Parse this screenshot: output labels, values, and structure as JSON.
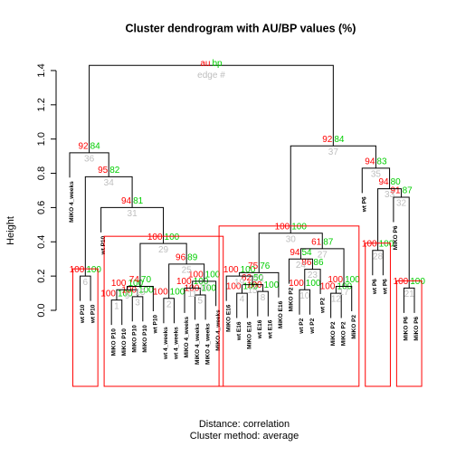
{
  "chart_data": {
    "type": "dendrogram",
    "title": "Cluster dendrogram with AU/BP values (%)",
    "y_label": "Height",
    "x_label": [
      "Distance:  correlation",
      "Cluster method: average"
    ],
    "legend": {
      "au": "au",
      "bp": "bp",
      "edge": "edge #"
    },
    "colors": {
      "au": "#ff0000",
      "bp": "#00cd00",
      "edge": "#bebebe",
      "line": "#000000",
      "box": "#ff0000"
    },
    "ylim": [
      0,
      1.45
    ],
    "yticks": [
      {
        "value": 0,
        "label": "0.0"
      },
      {
        "value": 0.2,
        "label": "0.2"
      },
      {
        "value": 0.4,
        "label": "0.4"
      },
      {
        "value": 0.6,
        "label": "0.6"
      },
      {
        "value": 0.8,
        "label": "0.8"
      },
      {
        "value": 1,
        "label": "1.0"
      },
      {
        "value": 1.2,
        "label": "1.2"
      },
      {
        "value": 1.4,
        "label": "1.4"
      }
    ],
    "leaves": [
      "MiKO 4_weeks",
      "wt P10",
      "wt P10",
      "wt P10",
      "MiKO P10",
      "MiKO P10",
      "MiKO P10",
      "MiKO P10",
      "wt P10",
      "wt 4_weeks",
      "wt 4_weeks",
      "MiKO 4_weeks",
      "MiKO 4_weeks",
      "MiKO 4_weeks",
      "MiKO 4_weeks",
      "MiKO E16",
      "wt E16",
      "MiKO E16",
      "wt E16",
      "wt E16",
      "MiKO E16",
      "MiKO P2",
      "wt P2",
      "wt P2",
      "wt P2",
      "MiKO P2",
      "MiKO P2",
      "MiKO P2",
      "wt P6",
      "wt P6",
      "wt P6",
      "MiKO P6",
      "MiKO P6",
      "MiKO P6"
    ],
    "merges": [
      {
        "children": [
          -2,
          -3
        ],
        "height": 0.2,
        "au": 100,
        "bp": 100,
        "edge": 6
      },
      {
        "children": [
          -5,
          -6
        ],
        "height": 0.06,
        "au": 100,
        "bp": 100,
        "edge": 1
      },
      {
        "children": [
          -7,
          -8
        ],
        "height": 0.08,
        "au": 100,
        "bp": 100,
        "edge": 3
      },
      {
        "children": [
          2,
          3
        ],
        "height": 0.12,
        "au": 100,
        "bp": 100,
        "edge": 9
      },
      {
        "children": [
          4,
          -9
        ],
        "height": 0.14,
        "au": 74,
        "bp": 70,
        "edge": 13
      },
      {
        "children": [
          -10,
          -11
        ],
        "height": 0.07,
        "au": 100,
        "bp": 100,
        "edge": 2
      },
      {
        "children": [
          -13,
          -14
        ],
        "height": 0.09,
        "au": 100,
        "bp": 100,
        "edge": 5
      },
      {
        "children": [
          -12,
          7
        ],
        "height": 0.13,
        "au": 100,
        "bp": 100,
        "edge": 11
      },
      {
        "children": [
          8,
          -15
        ],
        "height": 0.17,
        "au": 100,
        "bp": 100,
        "edge": 18
      },
      {
        "children": [
          6,
          9
        ],
        "height": 0.27,
        "au": 96,
        "bp": 89,
        "edge": 25
      },
      {
        "children": [
          5,
          10
        ],
        "height": 0.39,
        "au": 100,
        "bp": 100,
        "edge": 29
      },
      {
        "children": [
          -4,
          11
        ],
        "height": 0.6,
        "au": 94,
        "bp": 81,
        "edge": 31
      },
      {
        "children": [
          1,
          12
        ],
        "height": 0.78,
        "au": 95,
        "bp": 82,
        "edge": 34
      },
      {
        "children": [
          -1,
          13
        ],
        "height": 0.92,
        "au": 92,
        "bp": 84,
        "edge": 36
      },
      {
        "children": [
          -17,
          -18
        ],
        "height": 0.1,
        "au": 100,
        "bp": 100,
        "edge": 4
      },
      {
        "children": [
          -19,
          -20
        ],
        "height": 0.11,
        "au": 100,
        "bp": 100,
        "edge": 8
      },
      {
        "children": [
          15,
          16
        ],
        "height": 0.15,
        "au": 62,
        "bp": 50,
        "edge": 15
      },
      {
        "children": [
          -16,
          17
        ],
        "height": 0.2,
        "au": 100,
        "bp": 100,
        "edge": 19
      },
      {
        "children": [
          18,
          -21
        ],
        "height": 0.22,
        "au": 75,
        "bp": 76,
        "edge": 22
      },
      {
        "children": [
          -23,
          -24
        ],
        "height": 0.12,
        "au": 100,
        "bp": 100,
        "edge": 10
      },
      {
        "children": [
          -26,
          -27
        ],
        "height": 0.1,
        "au": 100,
        "bp": 100,
        "edge": 12
      },
      {
        "children": [
          21,
          -28
        ],
        "height": 0.14,
        "au": 100,
        "bp": 100,
        "edge": 17
      },
      {
        "children": [
          20,
          -25
        ],
        "height": 0.24,
        "au": 86,
        "bp": 86,
        "edge": 23
      },
      {
        "children": [
          -22,
          23
        ],
        "height": 0.3,
        "au": 94,
        "bp": 54,
        "edge": 24
      },
      {
        "children": [
          24,
          22
        ],
        "height": 0.36,
        "au": 61,
        "bp": 87,
        "edge": 27
      },
      {
        "children": [
          19,
          25
        ],
        "height": 0.45,
        "au": 100,
        "bp": 100,
        "edge": 30
      },
      {
        "children": [
          -30,
          -31
        ],
        "height": 0.35,
        "au": 100,
        "bp": 100,
        "edge": 28
      },
      {
        "children": [
          -33,
          -34
        ],
        "height": 0.13,
        "au": 100,
        "bp": 100,
        "edge": 21
      },
      {
        "children": [
          -32,
          28
        ],
        "height": 0.66,
        "au": 91,
        "bp": 87,
        "edge": 32
      },
      {
        "children": [
          27,
          29
        ],
        "height": 0.71,
        "au": 94,
        "bp": 80,
        "edge": 33
      },
      {
        "children": [
          -29,
          30
        ],
        "height": 0.83,
        "au": 94,
        "bp": 83,
        "edge": 35
      },
      {
        "children": [
          26,
          31
        ],
        "height": 0.96,
        "au": 92,
        "bp": 84,
        "edge": 37
      },
      {
        "children": [
          14,
          32
        ],
        "height": 1.43
      }
    ],
    "highlight": [
      1,
      11,
      26,
      27,
      28
    ]
  }
}
